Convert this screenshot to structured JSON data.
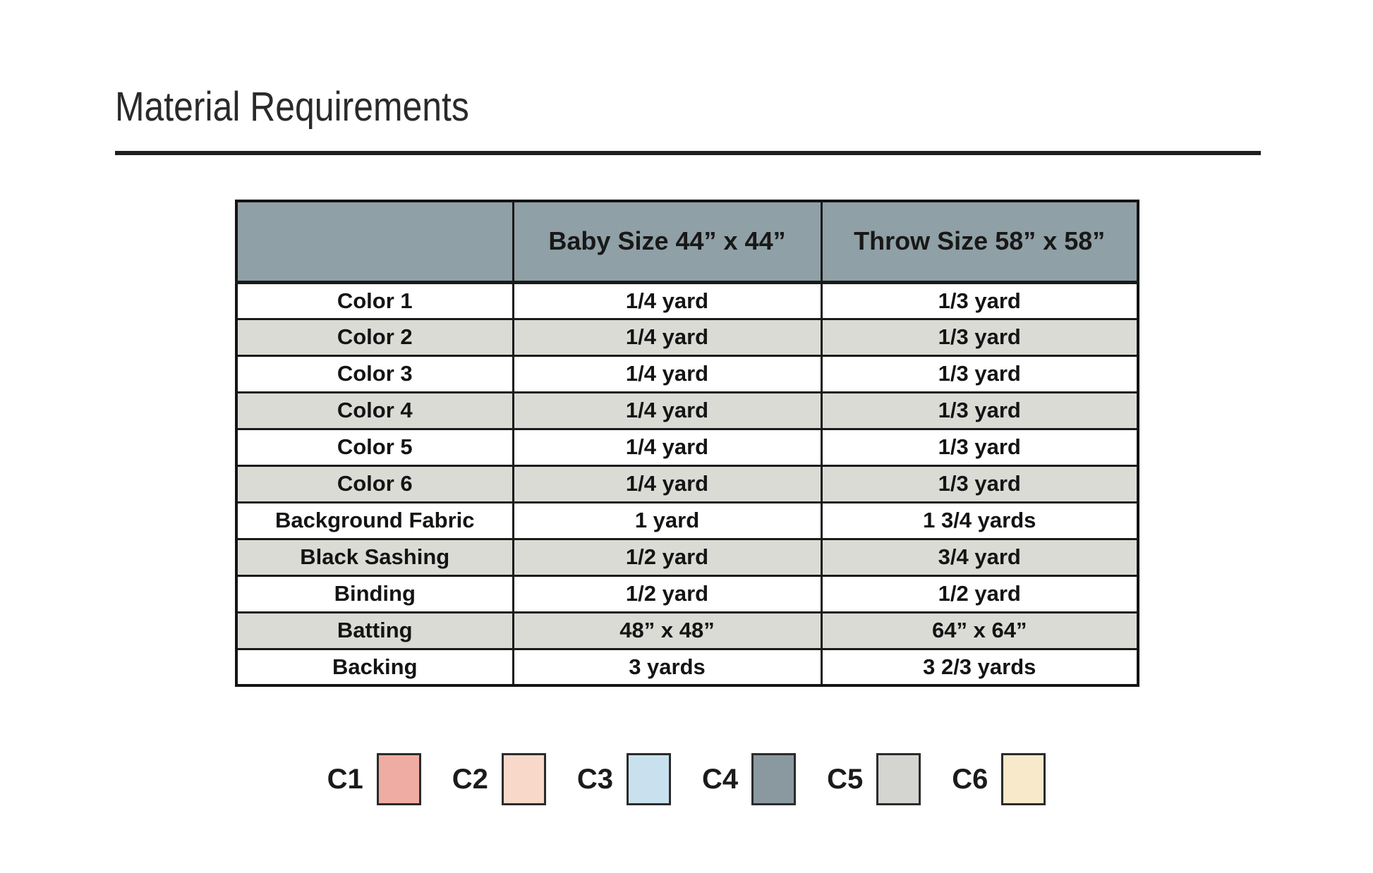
{
  "page": {
    "title": "Material Requirements"
  },
  "table": {
    "header": {
      "blank": "",
      "baby": "Baby Size 44” x 44”",
      "throw": "Throw Size 58” x 58”"
    },
    "rows": [
      {
        "name": "Color 1",
        "baby": "1/4 yard",
        "throw": "1/3 yard"
      },
      {
        "name": "Color 2",
        "baby": "1/4 yard",
        "throw": "1/3 yard"
      },
      {
        "name": "Color 3",
        "baby": "1/4 yard",
        "throw": "1/3 yard"
      },
      {
        "name": "Color 4",
        "baby": "1/4 yard",
        "throw": "1/3 yard"
      },
      {
        "name": "Color 5",
        "baby": "1/4 yard",
        "throw": "1/3 yard"
      },
      {
        "name": "Color 6",
        "baby": "1/4 yard",
        "throw": "1/3 yard"
      },
      {
        "name": "Background Fabric",
        "baby": "1 yard",
        "throw": "1 3/4 yards"
      },
      {
        "name": "Black Sashing",
        "baby": "1/2 yard",
        "throw": "3/4 yard"
      },
      {
        "name": "Binding",
        "baby": "1/2 yard",
        "throw": "1/2 yard"
      },
      {
        "name": "Batting",
        "baby": "48” x 48”",
        "throw": "64” x 64”"
      },
      {
        "name": "Backing",
        "baby": "3 yards",
        "throw": "3 2/3 yards"
      }
    ]
  },
  "legend": {
    "items": [
      {
        "label": "C1",
        "color": "#efaca3"
      },
      {
        "label": "C2",
        "color": "#f8d8c8"
      },
      {
        "label": "C3",
        "color": "#c9e1ee"
      },
      {
        "label": "C4",
        "color": "#8a99a0"
      },
      {
        "label": "C5",
        "color": "#d4d4d0"
      },
      {
        "label": "C6",
        "color": "#f7e9ca"
      }
    ]
  },
  "colors": {
    "header_bg": "#8fa0a6",
    "stripe_bg": "#dbdbd6",
    "border": "#1a1a1a",
    "rule": "#1f1f1f"
  }
}
